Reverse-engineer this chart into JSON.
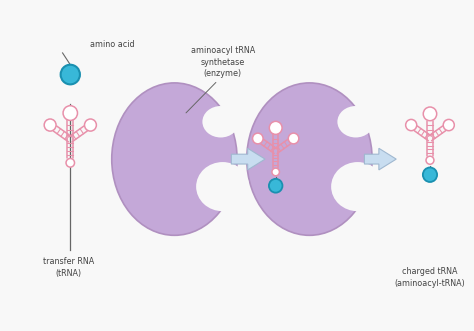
{
  "background_color": "#f8f8f8",
  "enzyme_color": "#c4a8d8",
  "enzyme_edge": "#b090c0",
  "trna_color": "#e890aa",
  "trna_loop_fill": "#ffffff",
  "amino_acid_color": "#38b8d8",
  "amino_acid_edge": "#1a90b0",
  "arrow_color": "#c8ddf0",
  "arrow_edge": "#a0b8d0",
  "label_color": "#444444",
  "line_color": "#666666",
  "amino_acid_label": "amino acid",
  "trna_label": "transfer RNA\n(tRNA)",
  "enzyme_label": "aminoacyl tRNA\nsynthetase\n(enzyme)",
  "charged_label": "charged tRNA\n(aminoacyl-tRNA)"
}
